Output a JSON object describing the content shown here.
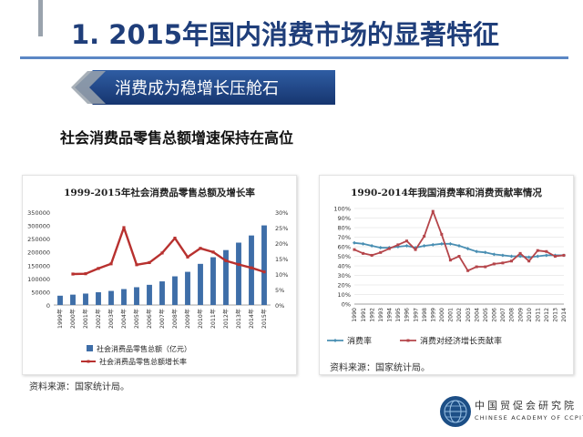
{
  "slide": {
    "title": "1. 2015年国内消费市场的显著特征",
    "banner": "消费成为稳增长压舱石",
    "subtitle": "社会消费品零售总额增速保持在高位",
    "accent": "#1f3e7a"
  },
  "logo": {
    "cn": "中国贸促会研究院",
    "en": "CHINESE ACADEMY OF CCPIT",
    "icon": "globe-emblem-icon"
  },
  "sources": {
    "left": "资料来源：国家统计局。",
    "right": "资料来源：国家统计局。"
  },
  "chart_data": [
    {
      "type": "bar",
      "title": "1999-2015年社会消费品零售总额及增长率",
      "categories": [
        "1999年",
        "2000年",
        "2001年",
        "2002年",
        "2003年",
        "2004年",
        "2005年",
        "2006年",
        "2007年",
        "2008年",
        "2009年",
        "2010年",
        "2011年",
        "2012年",
        "2013年",
        "2014年",
        "2015年"
      ],
      "series": [
        {
          "name": "社会消费品零售总额（亿元）",
          "type": "bar",
          "axis": "left",
          "color": "#3e6ea8",
          "values": [
            35000,
            39000,
            43000,
            48000,
            53000,
            60000,
            67000,
            76000,
            89000,
            108000,
            125000,
            155000,
            180000,
            207000,
            235000,
            262000,
            300000
          ]
        },
        {
          "name": "社会消费品零售总额增长率",
          "type": "line",
          "axis": "right",
          "color": "#b8312f",
          "values": [
            null,
            10.0,
            10.1,
            11.8,
            13.3,
            25.0,
            13.0,
            13.7,
            16.8,
            21.6,
            15.5,
            18.3,
            17.1,
            14.3,
            13.1,
            12.0,
            10.7
          ]
        }
      ],
      "y_left": {
        "min": 0,
        "max": 350000,
        "ticks": [
          "0",
          "50000",
          "100000",
          "150000",
          "200000",
          "250000",
          "300000",
          "350000"
        ]
      },
      "y_right": {
        "min": 0,
        "max": 30,
        "ticks": [
          "0%",
          "5%",
          "10%",
          "15%",
          "20%",
          "25%",
          "30%"
        ]
      },
      "legend_position": "bottom",
      "grid": false
    },
    {
      "type": "line",
      "title": "1990-2014年我国消费率和消费贡献率情况",
      "categories": [
        "1990",
        "1991",
        "1992",
        "1993",
        "1994",
        "1995",
        "1996",
        "1997",
        "1998",
        "1999",
        "2000",
        "2001",
        "2002",
        "2003",
        "2004",
        "2005",
        "2006",
        "2007",
        "2008",
        "2009",
        "2010",
        "2011",
        "2012",
        "2013",
        "2014"
      ],
      "series": [
        {
          "name": "消费率",
          "color": "#4a8fb3",
          "marker": "diamond",
          "values": [
            64,
            63,
            61,
            59,
            59,
            60,
            61,
            59,
            61,
            62,
            63,
            63,
            61,
            58,
            55,
            54,
            52,
            51,
            50,
            50,
            49,
            50,
            51,
            51,
            51
          ]
        },
        {
          "name": "消费对经济增长贡献率",
          "color": "#b5454a",
          "marker": "square",
          "values": [
            57,
            53,
            51,
            54,
            58,
            62,
            66,
            57,
            71,
            97,
            73,
            46,
            50,
            35,
            39,
            39,
            42,
            43,
            45,
            53,
            45,
            56,
            55,
            50,
            51
          ]
        }
      ],
      "y": {
        "min": 0,
        "max": 100,
        "ticks": [
          "0%",
          "10%",
          "20%",
          "30%",
          "40%",
          "50%",
          "60%",
          "70%",
          "80%",
          "90%",
          "100%"
        ]
      },
      "legend_position": "bottom",
      "grid": true
    }
  ]
}
